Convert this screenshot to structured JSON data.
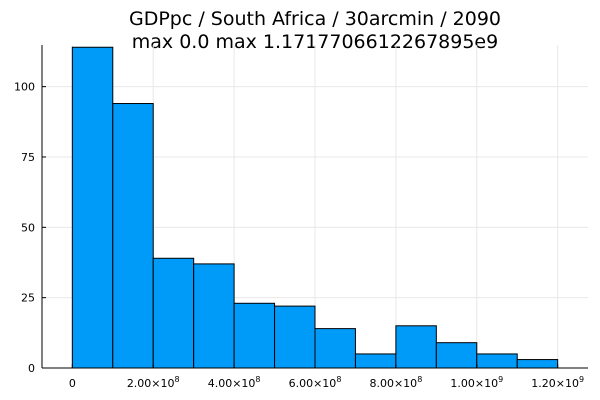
{
  "chart_data": {
    "type": "bar",
    "title_line1": "GDPpc / South Africa / 30arcmin / 2090",
    "title_line2": "max 0.0  max 1.1717706612267895e9",
    "bin_width": 100000000,
    "bins": [
      {
        "start": 0,
        "end": 100000000,
        "count": 114
      },
      {
        "start": 100000000,
        "end": 200000000,
        "count": 94
      },
      {
        "start": 200000000,
        "end": 300000000,
        "count": 39
      },
      {
        "start": 300000000,
        "end": 400000000,
        "count": 37
      },
      {
        "start": 400000000,
        "end": 500000000,
        "count": 23
      },
      {
        "start": 500000000,
        "end": 600000000,
        "count": 22
      },
      {
        "start": 600000000,
        "end": 700000000,
        "count": 14
      },
      {
        "start": 700000000,
        "end": 800000000,
        "count": 5
      },
      {
        "start": 800000000,
        "end": 900000000,
        "count": 15
      },
      {
        "start": 900000000,
        "end": 1000000000,
        "count": 9
      },
      {
        "start": 1000000000,
        "end": 1100000000,
        "count": 5
      },
      {
        "start": 1100000000,
        "end": 1200000000,
        "count": 3
      }
    ],
    "xlim": [
      -75000000,
      1275000000
    ],
    "ylim": [
      0,
      114.8
    ],
    "x_ticks": [
      {
        "value": 0,
        "mantissa": "0",
        "exp": ""
      },
      {
        "value": 200000000,
        "mantissa": "2.00×10",
        "exp": "8"
      },
      {
        "value": 400000000,
        "mantissa": "4.00×10",
        "exp": "8"
      },
      {
        "value": 600000000,
        "mantissa": "6.00×10",
        "exp": "8"
      },
      {
        "value": 800000000,
        "mantissa": "8.00×10",
        "exp": "8"
      },
      {
        "value": 1000000000,
        "mantissa": "1.00×10",
        "exp": "9"
      },
      {
        "value": 1200000000,
        "mantissa": "1.20×10",
        "exp": "9"
      }
    ],
    "y_ticks": [
      0,
      25,
      50,
      75,
      100
    ],
    "grid": true,
    "legend": "none",
    "bar_color": "#009af9"
  }
}
